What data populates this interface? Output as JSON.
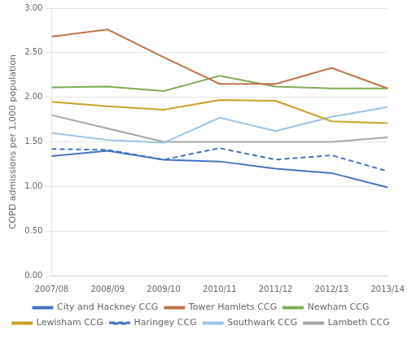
{
  "chart_data": {
    "type": "line",
    "categories": [
      "2007/08",
      "2008/09",
      "2009/10",
      "2010/11",
      "2011/12",
      "2012/13",
      "2013/14"
    ],
    "series": [
      {
        "name": "City and Hackney CCG",
        "color": "#4472c4",
        "line_style": "solid",
        "values": [
          1.34,
          1.4,
          1.3,
          1.28,
          1.2,
          1.15,
          0.99
        ]
      },
      {
        "name": "Tower Hamlets CCG",
        "color": "#c0734a",
        "line_style": "solid",
        "values": [
          2.68,
          2.76,
          2.45,
          2.15,
          2.15,
          2.33,
          2.1
        ]
      },
      {
        "name": "Newham CCG",
        "color": "#7fac57",
        "line_style": "solid",
        "values": [
          2.11,
          2.12,
          2.07,
          2.24,
          2.12,
          2.1,
          2.1
        ]
      },
      {
        "name": "Lewisham CCG",
        "color": "#c8a227",
        "line_style": "solid",
        "values": [
          1.95,
          1.9,
          1.86,
          1.97,
          1.96,
          1.73,
          1.71
        ]
      },
      {
        "name": "Haringey CCG",
        "color": "#4472c4",
        "line_style": "dashed",
        "values": [
          1.42,
          1.41,
          1.3,
          1.43,
          1.3,
          1.35,
          1.17
        ]
      },
      {
        "name": "Southwark CCG",
        "color": "#9dc3e6",
        "line_style": "solid",
        "values": [
          1.6,
          1.52,
          1.49,
          1.77,
          1.62,
          1.78,
          1.89
        ]
      },
      {
        "name": "Lambeth CCG",
        "color": "#a6a6a6",
        "line_style": "solid",
        "values": [
          1.8,
          1.65,
          1.5,
          1.5,
          1.5,
          1.5,
          1.55
        ]
      }
    ],
    "y_label": "COPD admissions per 1,000 population",
    "ylim": [
      0.0,
      3.0
    ],
    "yticks": [
      {
        "value": 0.0,
        "label": "0.00"
      },
      {
        "value": 0.5,
        "label": "0.50"
      },
      {
        "value": 1.0,
        "label": "1.00"
      },
      {
        "value": 1.5,
        "label": "1.50"
      },
      {
        "value": 2.0,
        "label": "2.00"
      },
      {
        "value": 2.5,
        "label": "2.50"
      },
      {
        "value": 3.0,
        "label": "3.00"
      }
    ],
    "grid": true,
    "legend": "bottom"
  }
}
